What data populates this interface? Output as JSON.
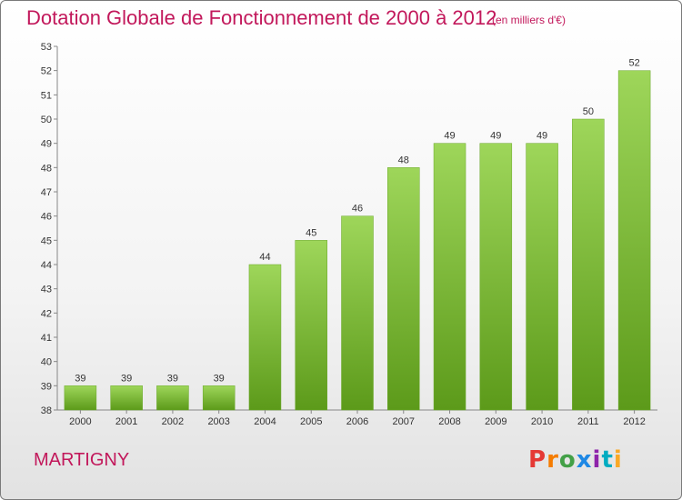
{
  "header": {
    "title": "Dotation Globale de Fonctionnement de 2000 à 2012",
    "unit_note": "(en milliers d'€)"
  },
  "footer": {
    "place": "MARTIGNY",
    "brand": "Proxiti"
  },
  "colors": {
    "title": "#c2185b",
    "bar_top": "#9ed65a",
    "bar_bottom": "#5c9a1a",
    "logo_letters": [
      "#e53935",
      "#f57c00",
      "#43a047",
      "#1e88e5",
      "#8e24aa",
      "#00acc1",
      "#f9a825"
    ]
  },
  "chart_data": {
    "type": "bar",
    "categories": [
      "2000",
      "2001",
      "2002",
      "2003",
      "2004",
      "2005",
      "2006",
      "2007",
      "2008",
      "2009",
      "2010",
      "2011",
      "2012"
    ],
    "values": [
      39,
      39,
      39,
      39,
      44,
      45,
      46,
      48,
      49,
      49,
      49,
      50,
      52
    ],
    "ylim": [
      38,
      53
    ],
    "yticks": [
      38,
      39,
      40,
      41,
      42,
      43,
      44,
      45,
      46,
      47,
      48,
      49,
      50,
      51,
      52,
      53
    ],
    "grid": false,
    "legend": "none"
  }
}
